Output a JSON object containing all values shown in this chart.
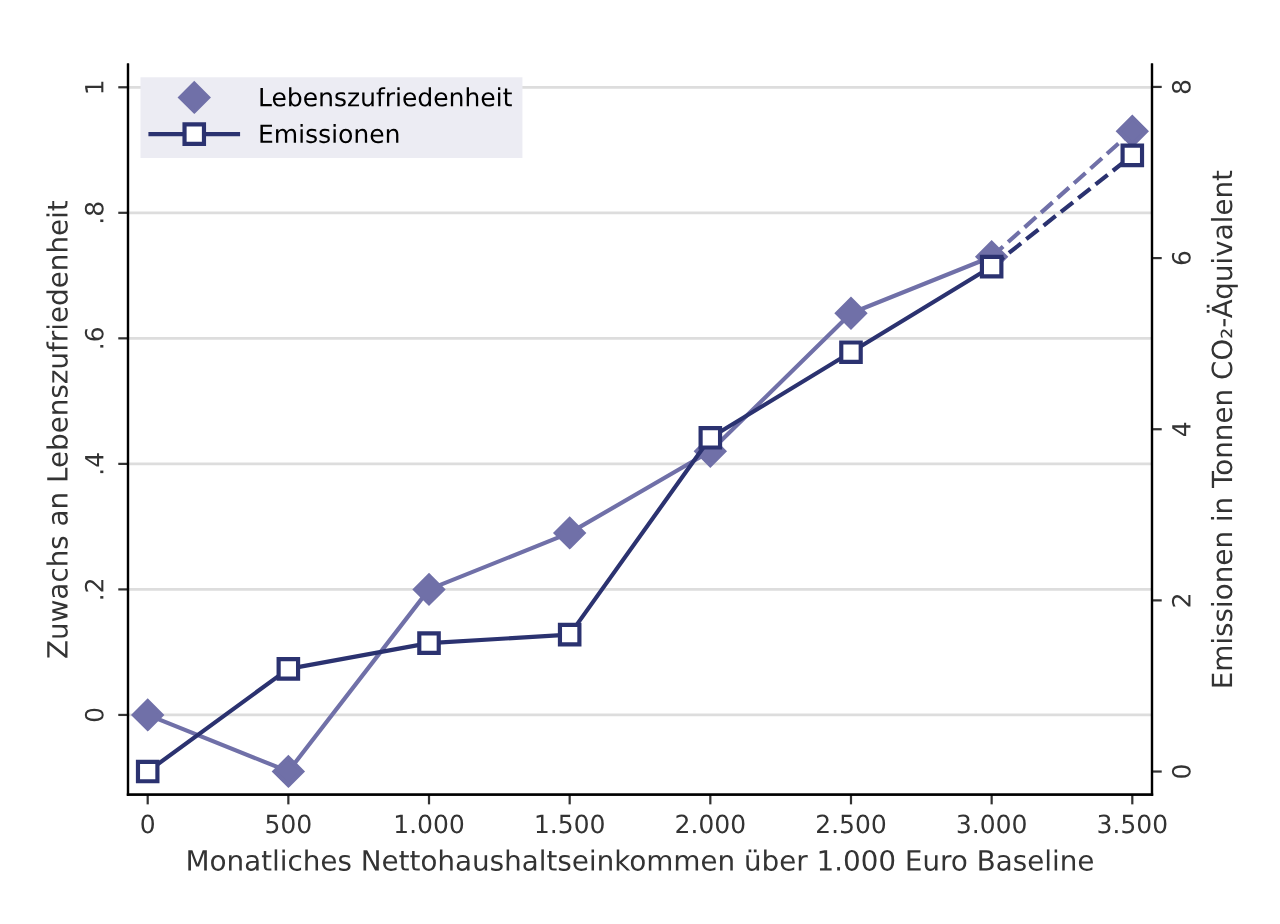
{
  "chart_data": {
    "type": "line",
    "xlabel": "Monatliches Nettohaushaltseinkommen über 1.000 Euro Baseline",
    "ylabel": "Zuwachs an Lebenszufriedenheit",
    "y2label": "Emissionen in Tonnen CO₂-Äquivalent",
    "xlim": [
      -70,
      3570
    ],
    "xticks": [
      0,
      500,
      {
        "value": 1000,
        "label": "1.000"
      },
      {
        "value": 1500,
        "label": "1.500"
      },
      {
        "value": 2000,
        "label": "2.000"
      },
      {
        "value": 2500,
        "label": "2.500"
      },
      {
        "value": 3000,
        "label": "3.000"
      },
      {
        "value": 3500,
        "label": "3.500"
      }
    ],
    "ylim": [
      -0.127,
      1.036
    ],
    "yticks": [
      0,
      {
        "value": 0.2,
        "label": ".2"
      },
      {
        "value": 0.4,
        "label": ".4"
      },
      {
        "value": 0.6,
        "label": ".6"
      },
      {
        "value": 0.8,
        "label": ".8"
      },
      1
    ],
    "y2lim": [
      -0.27,
      8.26
    ],
    "y2ticks": [
      0,
      2,
      4,
      6,
      8
    ],
    "grid": "y",
    "legend": "top left",
    "series": [
      {
        "name": "Lebenszufriedenheit",
        "color": "#7070a8",
        "x": [
          0,
          500,
          1000,
          1500,
          2000,
          2500,
          3000
        ],
        "values": [
          0,
          -0.09,
          0.2,
          0.29,
          0.42,
          0.64,
          0.73
        ],
        "marker": "diamond",
        "line_style": "solid"
      },
      {
        "name": "Emissionen",
        "color": "#2b3270",
        "axis": "y2",
        "x": [
          0,
          500,
          1000,
          1500,
          2000,
          2500,
          3000
        ],
        "values": [
          0,
          1.2,
          1.5,
          1.6,
          3.9,
          4.9,
          5.9
        ],
        "marker": "square",
        "line_style": "solid"
      },
      {
        "color": "#7070a8",
        "x": [
          3000,
          3500
        ],
        "values": [
          0.73,
          0.93
        ],
        "marker": "diamond",
        "line_style": "dashed"
      },
      {
        "color": "#2b3270",
        "axis": "y2",
        "x": [
          3000,
          3500
        ],
        "values": [
          5.9,
          7.2
        ],
        "marker": "square",
        "line_style": "dashed"
      }
    ]
  }
}
